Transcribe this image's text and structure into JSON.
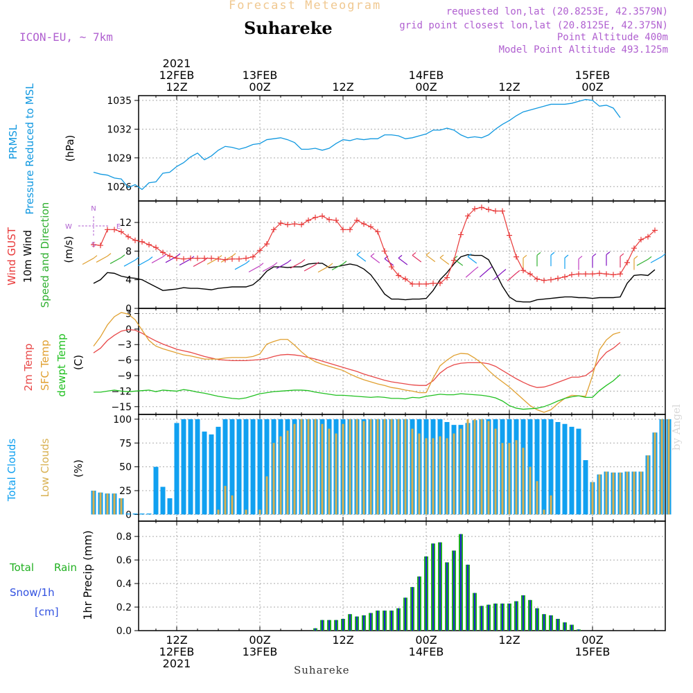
{
  "header": {
    "title": "Forecast Meteogram",
    "station": "Suhareke",
    "model": "ICON-EU, ~ 7km",
    "requested": "requested lon,lat (20.8253E, 42.3579N)",
    "grid_point": "grid point closest lon,lat (20.8125E, 42.375N)",
    "point_altitude": "Point Altitude 400m",
    "model_altitude": "Model Point Altitude 493.125m"
  },
  "footer": {
    "station": "Suhareke",
    "credit": "by Angel"
  },
  "time_axis": {
    "top": [
      {
        "t": 12,
        "lines": [
          "2021",
          "12FEB",
          "12Z"
        ]
      },
      {
        "t": 24,
        "lines": [
          "13FEB",
          "00Z"
        ]
      },
      {
        "t": 36,
        "lines": [
          "12Z"
        ]
      },
      {
        "t": 48,
        "lines": [
          "14FEB",
          "00Z"
        ]
      },
      {
        "t": 60,
        "lines": [
          "12Z"
        ]
      },
      {
        "t": 72,
        "lines": [
          "15FEB",
          "00Z"
        ]
      }
    ],
    "bottom": [
      {
        "t": 12,
        "lines": [
          "12Z",
          "12FEB",
          "2021"
        ]
      },
      {
        "t": 24,
        "lines": [
          "00Z",
          "13FEB"
        ]
      },
      {
        "t": 36,
        "lines": [
          "12Z"
        ]
      },
      {
        "t": 48,
        "lines": [
          "00Z",
          "14FEB"
        ]
      },
      {
        "t": 60,
        "lines": [
          "12Z"
        ]
      },
      {
        "t": 72,
        "lines": [
          "00Z",
          "15FEB"
        ]
      }
    ]
  },
  "chart_data": [
    {
      "type": "line",
      "title": "",
      "ylabel": [
        "PRMSL",
        "Pressure Reduced to MSL",
        "(hPa)"
      ],
      "ylim": [
        1024.5,
        1035.5
      ],
      "yticks": [
        1026,
        1029,
        1032,
        1035
      ],
      "grid": true,
      "series": [
        {
          "name": "PRMSL",
          "color": "#1098e0",
          "values": [
            1027.5,
            1027.3,
            1027.2,
            1026.9,
            1026.8,
            1025.9,
            1026.2,
            1025.7,
            1026.4,
            1026.5,
            1027.4,
            1027.5,
            1028.1,
            1028.5,
            1029.1,
            1029.5,
            1028.8,
            1029.2,
            1029.8,
            1030.2,
            1030.1,
            1029.9,
            1030.1,
            1030.4,
            1030.5,
            1030.9,
            1031.0,
            1031.1,
            1030.9,
            1030.6,
            1029.9,
            1029.9,
            1030.0,
            1029.8,
            1030.0,
            1030.5,
            1030.9,
            1030.8,
            1031.0,
            1030.9,
            1031.0,
            1031.0,
            1031.4,
            1031.4,
            1031.3,
            1031.0,
            1031.1,
            1031.3,
            1031.5,
            1031.9,
            1031.9,
            1032.1,
            1031.9,
            1031.4,
            1031.1,
            1031.2,
            1031.1,
            1031.4,
            1032.0,
            1032.5,
            1032.9,
            1033.4,
            1033.8,
            1034.0,
            1034.2,
            1034.4,
            1034.6,
            1034.6,
            1034.6,
            1034.7,
            1034.9,
            1035.1,
            1035.0,
            1034.4,
            1034.5,
            1034.2,
            1033.2
          ]
        }
      ]
    },
    {
      "type": "line",
      "title": "",
      "ylabel": [
        "Wind GUST",
        "10m Wind",
        "Speed and Direction",
        "(m/s)"
      ],
      "ylim": [
        0,
        15
      ],
      "yticks": [
        0,
        4,
        8,
        12
      ],
      "grid": true,
      "compass": {
        "n": "N",
        "e": "E",
        "s": "S",
        "w": "W"
      },
      "series": [
        {
          "name": "Wind GUST",
          "color": "#e83838",
          "marker": "+",
          "values": [
            8.9,
            8.8,
            11.0,
            11.0,
            10.7,
            10.0,
            9.5,
            9.3,
            8.9,
            8.5,
            7.8,
            7.3,
            7.0,
            6.9,
            7.0,
            7.0,
            7.0,
            7.0,
            6.9,
            6.8,
            6.9,
            6.9,
            7.0,
            7.2,
            8.1,
            9.0,
            11.0,
            11.9,
            11.7,
            11.8,
            11.7,
            12.3,
            12.7,
            12.9,
            12.4,
            12.3,
            11.0,
            11.0,
            12.3,
            11.8,
            11.4,
            10.7,
            8.0,
            5.8,
            4.6,
            4.1,
            3.4,
            3.4,
            3.4,
            3.5,
            3.5,
            4.3,
            6.7,
            10.3,
            12.9,
            13.9,
            14.1,
            13.8,
            13.6,
            13.6,
            10.2,
            7.2,
            5.3,
            4.8,
            4.1,
            3.9,
            4.0,
            4.2,
            4.4,
            4.7,
            4.8,
            4.8,
            4.8,
            4.9,
            4.8,
            4.7,
            4.8,
            6.4,
            8.4,
            9.6,
            10.0,
            10.9
          ]
        },
        {
          "name": "10m Wind",
          "color": "#000000",
          "values": [
            3.5,
            4.0,
            5.0,
            4.9,
            4.5,
            4.3,
            4.2,
            4.0,
            3.5,
            3.0,
            2.5,
            2.6,
            2.7,
            2.9,
            2.8,
            2.8,
            2.7,
            2.6,
            2.8,
            2.9,
            3.0,
            3.0,
            3.0,
            3.3,
            4.1,
            5.2,
            5.8,
            5.8,
            5.7,
            5.8,
            5.8,
            6.2,
            6.3,
            6.3,
            5.7,
            5.8,
            6.0,
            6.2,
            6.0,
            5.5,
            4.7,
            3.4,
            2.0,
            1.3,
            1.3,
            1.2,
            1.3,
            1.3,
            1.4,
            2.5,
            4.0,
            5.0,
            6.2,
            7.2,
            7.5,
            7.4,
            7.4,
            6.8,
            5.0,
            3.1,
            1.6,
            1.0,
            0.9,
            0.9,
            1.2,
            1.3,
            1.4,
            1.5,
            1.6,
            1.6,
            1.5,
            1.5,
            1.4,
            1.5,
            1.5,
            1.5,
            1.6,
            3.5,
            4.6,
            4.7,
            4.6,
            5.4
          ]
        },
        {
          "name": "Speed and Direction",
          "color": "#30b030",
          "values": []
        }
      ]
    },
    {
      "type": "line",
      "title": "",
      "ylabel": [
        "2m Temp",
        "SFC Temp",
        "dewpt Temp",
        "(C)"
      ],
      "ylim": [
        -16.5,
        4
      ],
      "yticks": [
        3,
        0,
        -3,
        -6,
        -9,
        -12,
        -15
      ],
      "grid": true,
      "series": [
        {
          "name": "2m Temp",
          "color": "#e84848",
          "values": [
            -4.6,
            -3.7,
            -2.2,
            -1.2,
            -0.4,
            -0.1,
            -0.2,
            -0.8,
            -1.6,
            -2.3,
            -2.9,
            -3.4,
            -3.9,
            -4.2,
            -4.5,
            -4.9,
            -5.3,
            -5.6,
            -5.9,
            -6.0,
            -6.1,
            -6.1,
            -6.1,
            -6.0,
            -5.9,
            -5.7,
            -5.3,
            -5.0,
            -4.9,
            -5.0,
            -5.2,
            -5.5,
            -5.8,
            -6.2,
            -6.6,
            -7.0,
            -7.4,
            -7.8,
            -8.2,
            -8.7,
            -9.1,
            -9.5,
            -9.9,
            -10.2,
            -10.4,
            -10.6,
            -10.8,
            -10.9,
            -10.9,
            -10.0,
            -8.5,
            -7.5,
            -6.9,
            -6.6,
            -6.5,
            -6.5,
            -6.5,
            -6.7,
            -7.2,
            -8.0,
            -8.8,
            -9.6,
            -10.3,
            -10.9,
            -11.3,
            -11.2,
            -10.8,
            -10.3,
            -9.8,
            -9.3,
            -9.3,
            -9.0,
            -8.0,
            -6.0,
            -4.5,
            -3.7,
            -2.6
          ]
        },
        {
          "name": "SFC Temp",
          "color": "#e0a030",
          "values": [
            -3.3,
            -1.5,
            0.8,
            2.4,
            3.2,
            2.9,
            1.8,
            -0.2,
            -2.2,
            -3.3,
            -3.8,
            -4.2,
            -4.6,
            -5.0,
            -5.2,
            -5.5,
            -5.8,
            -5.8,
            -5.8,
            -5.6,
            -5.5,
            -5.5,
            -5.5,
            -5.3,
            -4.8,
            -2.9,
            -2.4,
            -2.0,
            -2.0,
            -3.1,
            -4.4,
            -5.5,
            -6.3,
            -6.8,
            -7.2,
            -7.6,
            -8.0,
            -8.7,
            -9.3,
            -9.8,
            -10.2,
            -10.6,
            -10.9,
            -11.3,
            -11.5,
            -11.8,
            -12.0,
            -12.3,
            -12.3,
            -9.5,
            -7.1,
            -6.0,
            -5.1,
            -4.7,
            -4.8,
            -5.6,
            -6.6,
            -8.0,
            -9.2,
            -10.2,
            -11.2,
            -12.4,
            -13.6,
            -14.8,
            -15.6,
            -16.1,
            -15.6,
            -14.4,
            -13.4,
            -12.8,
            -12.9,
            -13.0,
            -9.0,
            -4.0,
            -2.1,
            -1.0,
            -0.6
          ]
        },
        {
          "name": "dewpt Temp",
          "color": "#20c020",
          "values": [
            -12.2,
            -12.2,
            -12.0,
            -11.8,
            -12.0,
            -12.1,
            -12.0,
            -11.9,
            -11.8,
            -12.1,
            -11.8,
            -11.9,
            -12.0,
            -11.7,
            -11.9,
            -12.2,
            -12.4,
            -12.7,
            -13.0,
            -13.2,
            -13.4,
            -13.5,
            -13.3,
            -12.9,
            -12.5,
            -12.3,
            -12.1,
            -12.0,
            -11.9,
            -11.8,
            -11.8,
            -11.9,
            -12.2,
            -12.4,
            -12.6,
            -12.8,
            -12.8,
            -12.9,
            -13.0,
            -13.1,
            -13.2,
            -13.1,
            -13.2,
            -13.4,
            -13.4,
            -13.5,
            -13.2,
            -13.3,
            -13.0,
            -12.8,
            -12.6,
            -12.7,
            -12.7,
            -12.5,
            -12.6,
            -12.7,
            -12.8,
            -13.0,
            -13.3,
            -13.9,
            -14.8,
            -15.3,
            -15.5,
            -15.4,
            -15.3,
            -15.0,
            -14.5,
            -13.9,
            -13.4,
            -13.1,
            -12.9,
            -13.2,
            -13.2,
            -11.9,
            -10.9,
            -10.0,
            -8.8
          ]
        }
      ]
    },
    {
      "type": "bar",
      "title": "",
      "ylabel": [
        "Total Clouds",
        "Low Clouds",
        "(%)"
      ],
      "ylim": [
        -7,
        105
      ],
      "yticks": [
        0,
        25,
        50,
        75,
        100
      ],
      "grid": true,
      "series": [
        {
          "name": "Total Clouds",
          "color": "#10a0f0",
          "values": [
            25,
            23,
            22,
            22,
            17,
            1,
            1,
            1,
            1,
            50,
            29,
            17,
            96,
            100,
            100,
            100,
            87,
            84,
            92,
            100,
            100,
            100,
            100,
            100,
            100,
            100,
            100,
            100,
            100,
            100,
            100,
            100,
            100,
            100,
            100,
            100,
            100,
            100,
            100,
            100,
            100,
            100,
            100,
            100,
            100,
            100,
            100,
            100,
            100,
            100,
            100,
            97,
            94,
            94,
            96,
            99,
            100,
            100,
            100,
            100,
            100,
            100,
            100,
            100,
            100,
            100,
            100,
            97,
            95,
            92,
            90,
            57,
            34,
            42,
            45,
            44,
            44,
            45,
            45,
            45,
            62,
            86,
            100,
            100
          ]
        },
        {
          "name": "Low Clouds",
          "color": "#d8b050",
          "values": [
            25,
            23,
            22,
            22,
            17,
            0,
            0,
            0,
            0,
            0,
            0,
            0,
            0,
            0,
            0,
            0,
            0,
            0,
            5,
            30,
            20,
            0,
            5,
            0,
            5,
            40,
            75,
            82,
            88,
            95,
            100,
            100,
            100,
            95,
            90,
            85,
            95,
            100,
            100,
            98,
            100,
            100,
            100,
            100,
            100,
            100,
            90,
            85,
            80,
            80,
            82,
            80,
            85,
            90,
            100,
            100,
            100,
            98,
            90,
            75,
            75,
            78,
            70,
            50,
            35,
            5,
            20,
            0,
            0,
            0,
            0,
            0,
            34,
            42,
            45,
            44,
            44,
            45,
            45,
            45,
            62,
            86,
            100,
            100
          ]
        }
      ]
    },
    {
      "type": "bar",
      "title": "",
      "ylabel": [
        "1hr Precip (mm)"
      ],
      "side_labels": [
        "Total",
        "Rain",
        "Snow/1h",
        "[cm]"
      ],
      "ylim": [
        0,
        0.93
      ],
      "yticks": [
        0,
        0.2,
        0.4,
        0.6,
        0.8
      ],
      "grid": true,
      "series": [
        {
          "name": "Total",
          "color": "#20b020",
          "values": [
            0,
            0,
            0,
            0,
            0,
            0,
            0,
            0,
            0,
            0,
            0,
            0,
            0,
            0,
            0,
            0,
            0,
            0,
            0,
            0,
            0,
            0,
            0,
            0,
            0,
            0,
            0,
            0,
            0,
            0,
            0,
            0,
            0.02,
            0.09,
            0.09,
            0.09,
            0.1,
            0.14,
            0.12,
            0.13,
            0.15,
            0.17,
            0.17,
            0.17,
            0.19,
            0.28,
            0.37,
            0.46,
            0.63,
            0.74,
            0.75,
            0.58,
            0.68,
            0.82,
            0.56,
            0.32,
            0.21,
            0.22,
            0.23,
            0.23,
            0.23,
            0.25,
            0.3,
            0.26,
            0.19,
            0.14,
            0.13,
            0.1,
            0.07,
            0.05,
            0.01,
            0,
            0,
            0,
            0,
            0,
            0,
            0,
            0,
            0,
            0,
            0,
            0,
            0,
            0,
            0,
            0,
            0,
            0,
            0,
            0,
            0.01,
            0.06
          ]
        },
        {
          "name": "Rain",
          "color": "#2020d0",
          "values": []
        },
        {
          "name": "Snow/1h",
          "color": "#3050e0",
          "values": []
        }
      ]
    }
  ],
  "wind_barbs": {
    "segments": [
      {
        "from": 0,
        "to": 22,
        "level": 7.0,
        "dir": "sw"
      },
      {
        "from": 22,
        "to": 38,
        "level": 6.2,
        "dir": "sw"
      },
      {
        "from": 38,
        "to": 55,
        "level": 7.2,
        "dir": "e"
      },
      {
        "from": 55,
        "to": 62,
        "level": 5.2,
        "dir": "ne"
      },
      {
        "from": 62,
        "to": 80,
        "level": 7.2,
        "dir": "n"
      },
      {
        "from": 80,
        "to": 84,
        "level": 7.0,
        "dir": "sw"
      }
    ],
    "colors": [
      "#e0a030",
      "#30b030",
      "#10a0f0",
      "#c040c0",
      "#8010c0",
      "#e03060"
    ]
  }
}
